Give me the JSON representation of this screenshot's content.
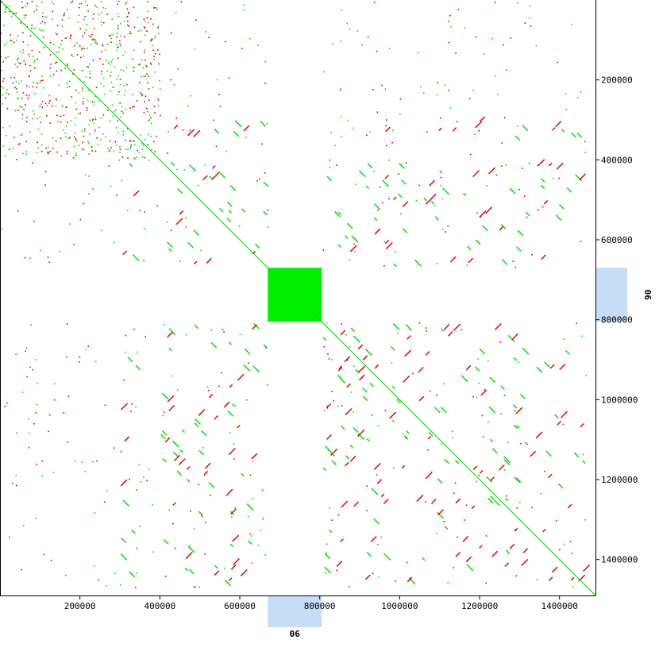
{
  "chart_data": {
    "type": "scatter",
    "title": "",
    "xlabel": "",
    "ylabel": "",
    "xlim": [
      0,
      1490000
    ],
    "ylim": [
      0,
      1490000
    ],
    "x_ticks": [
      {
        "value": 200000,
        "label": "200000"
      },
      {
        "value": 400000,
        "label": "400000"
      },
      {
        "value": 600000,
        "label": "600000"
      },
      {
        "value": 800000,
        "label": "800000"
      },
      {
        "value": 1000000,
        "label": "1000000"
      },
      {
        "value": 1200000,
        "label": "1200000"
      },
      {
        "value": 1400000,
        "label": "1400000"
      }
    ],
    "y_ticks": [
      {
        "value": 200000,
        "label": "200000"
      },
      {
        "value": 400000,
        "label": "400000"
      },
      {
        "value": 600000,
        "label": "600000"
      },
      {
        "value": 800000,
        "label": "800000"
      },
      {
        "value": 1000000,
        "label": "1000000"
      },
      {
        "value": 1200000,
        "label": "1200000"
      },
      {
        "value": 1400000,
        "label": "1400000"
      }
    ],
    "highlight_region": {
      "label": "06",
      "start": 670000,
      "end": 805000
    },
    "dense_block": {
      "x": [
        670000,
        805000
      ],
      "y": [
        670000,
        805000
      ]
    },
    "series": [
      {
        "color": "#00dd00"
      },
      {
        "color": "#dd0000"
      }
    ],
    "colors": {
      "forward": "#00dd00",
      "reverse": "#dd0000",
      "highlight": "#c6dcf7",
      "block": "#00ee00"
    }
  }
}
